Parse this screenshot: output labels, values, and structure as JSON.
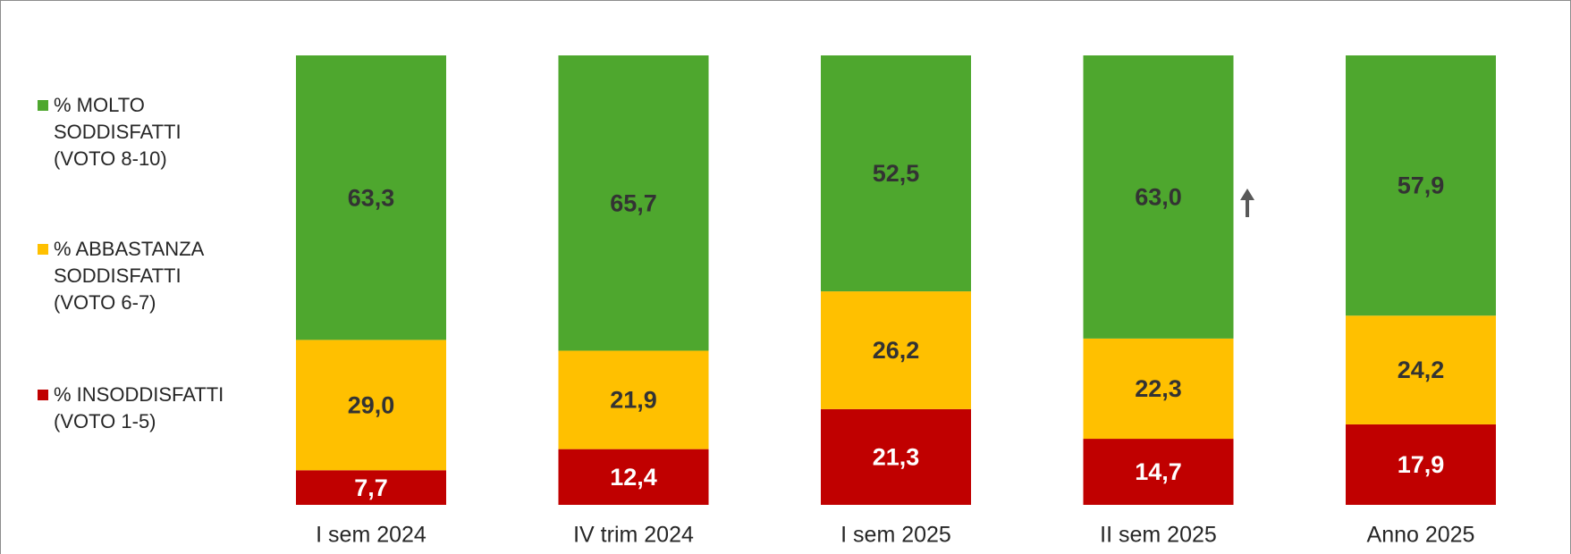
{
  "chart_data": {
    "type": "stacked-bar",
    "categories": [
      "I sem 2024",
      "IV trim 2024",
      "I sem 2025",
      "II sem 2025",
      "Anno 2025"
    ],
    "series": [
      {
        "name": "% MOLTO SODDISFATTI (VOTO 8-10)",
        "color": "#4ea72e",
        "values": [
          63.3,
          65.7,
          52.5,
          63.0,
          57.9
        ],
        "value_labels": [
          "63,3",
          "65,7",
          "52,5",
          "63,0",
          "57,9"
        ]
      },
      {
        "name": "% ABBASTANZA SODDISFATTI (VOTO 6-7)",
        "color": "#ffc000",
        "values": [
          29.0,
          21.9,
          26.2,
          22.3,
          24.2
        ],
        "value_labels": [
          "29,0",
          "21,9",
          "26,2",
          "22,3",
          "24,2"
        ]
      },
      {
        "name": "% INSODDISFATTI (VOTO 1-5)",
        "color": "#c00000",
        "values": [
          7.7,
          12.4,
          21.3,
          14.7,
          17.9
        ],
        "value_labels": [
          "7,7",
          "12,4",
          "21,3",
          "14,7",
          "17,9"
        ]
      }
    ],
    "ylim": [
      0,
      100
    ],
    "legend": "left"
  }
}
